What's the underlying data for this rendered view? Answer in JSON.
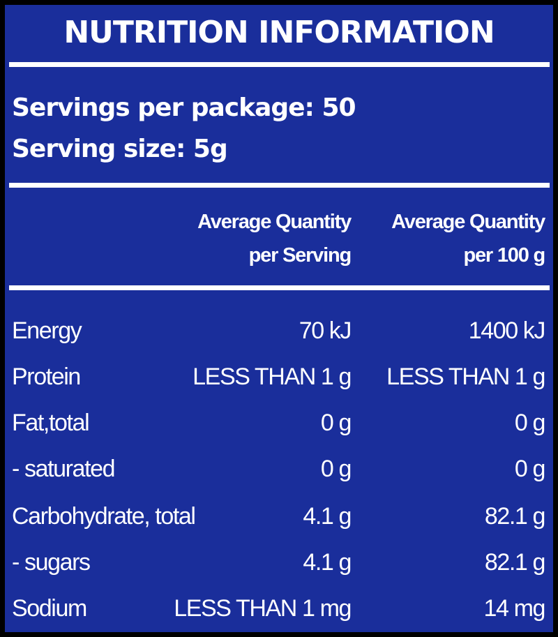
{
  "title": "NUTRITION INFORMATION",
  "servings_per_package": "Servings per package: 50",
  "serving_size": "Serving size: 5g",
  "columns": {
    "per_serving_line1": "Average Quantity",
    "per_serving_line2": "per Serving",
    "per_100g_line1": "Average Quantity",
    "per_100g_line2": "per 100 g"
  },
  "rows": [
    {
      "label": "Energy",
      "per_serving": "70 kJ",
      "per_100g": "1400 kJ"
    },
    {
      "label": "Protein",
      "per_serving": "LESS THAN 1 g",
      "per_100g": "LESS THAN 1 g"
    },
    {
      "label": "Fat,total",
      "per_serving": "0 g",
      "per_100g": "0 g"
    },
    {
      "label": "- saturated",
      "per_serving": "0 g",
      "per_100g": "0 g"
    },
    {
      "label": "Carbohydrate, total",
      "per_serving": "4.1 g",
      "per_100g": "82.1 g"
    },
    {
      "label": "- sugars",
      "per_serving": "4.1 g",
      "per_100g": "82.1 g"
    },
    {
      "label": "Sodium",
      "per_serving": "LESS THAN 1 mg",
      "per_100g": "14 mg"
    }
  ],
  "colors": {
    "background": "#1a2e9b",
    "text": "#ffffff",
    "frame": "#000000"
  }
}
